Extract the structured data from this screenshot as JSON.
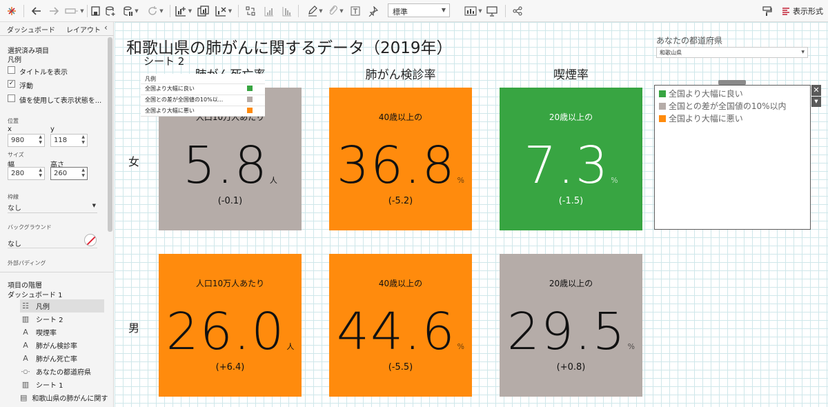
{
  "toolbar": {
    "fit_value": "標準",
    "format_label": "表示形式",
    "icons": [
      "tableau-logo-icon",
      "undo-icon",
      "redo-icon",
      "swap-icon",
      "save-icon",
      "add-datasource-icon",
      "pause-update-icon",
      "refresh-icon",
      "new-worksheet-icon",
      "duplicate-icon",
      "clear-icon",
      "swap-rows-icon",
      "sort-asc-icon",
      "sort-desc-icon",
      "highlight-icon",
      "group-icon",
      "label-icon",
      "pin-icon",
      "show-cards-icon",
      "presentation-icon",
      "share-icon",
      "format-painter-icon"
    ]
  },
  "panel": {
    "tabs": [
      "ダッシュボード",
      "レイアウト"
    ],
    "selected_label": "選択済み項目",
    "selected_item": "凡例",
    "cb_show_title": "タイトルを表示",
    "cb_float": "浮動",
    "cb_float_check": "✓",
    "cb_value_vis": "値を使用して表示状態を...",
    "pos_label": "位置",
    "x_label": "x",
    "y_label": "y",
    "x_value": "980",
    "y_value": "118",
    "size_label": "サイズ",
    "w_label": "幅",
    "h_label": "高さ",
    "w_value": "280",
    "h_value": "260",
    "border_label": "枠線",
    "border_value": "なし",
    "bg_label": "バックグラウンド",
    "bg_value": "なし",
    "padding_label": "外部パディング",
    "hierarchy_label": "項目の階層",
    "dashboard_name": "ダッシュボード 1",
    "tree": [
      {
        "label": "凡例",
        "icon": "legend-icon",
        "glyph": "☷"
      },
      {
        "label": "シート 2",
        "icon": "sheet-icon",
        "glyph": "▥"
      },
      {
        "label": "喫煙率",
        "icon": "text-icon",
        "glyph": "A"
      },
      {
        "label": "肺がん検診率",
        "icon": "text-icon",
        "glyph": "A"
      },
      {
        "label": "肺がん死亡率",
        "icon": "text-icon",
        "glyph": "A"
      },
      {
        "label": "あなたの都道府県",
        "icon": "parameter-icon",
        "glyph": "-○-"
      },
      {
        "label": "シート 1",
        "icon": "sheet-icon",
        "glyph": "▥"
      },
      {
        "label": "和歌山県の肺がんに関す",
        "icon": "title-icon",
        "glyph": "▤"
      }
    ]
  },
  "dashboard": {
    "title": "和歌山県の肺がんに関するデータ（2019年）",
    "sheet2_label": "シート 2",
    "col_headers": [
      "肺がん死亡率",
      "肺がん検診率",
      "喫煙率"
    ],
    "row_headers": [
      "女",
      "男"
    ],
    "tiles": [
      {
        "sub": "人口10万人あたり",
        "value": "5.8",
        "unit": "人",
        "diff": "(-0.1)",
        "color": "#b5aca8"
      },
      {
        "sub": "40歳以上の",
        "value": "36.8",
        "unit": "%",
        "diff": "(-5.2)",
        "color": "#ff8b0d"
      },
      {
        "sub": "20歳以上の",
        "value": "7.3",
        "unit": "%",
        "diff": "(-1.5)",
        "color": "#38a542"
      },
      {
        "sub": "人口10万人あたり",
        "value": "26.0",
        "unit": "人",
        "diff": "(+6.4)",
        "color": "#ff8b0d"
      },
      {
        "sub": "40歳以上の",
        "value": "44.6",
        "unit": "%",
        "diff": "(-5.5)",
        "color": "#ff8b0d"
      },
      {
        "sub": "20歳以上の",
        "value": "29.5",
        "unit": "%",
        "diff": "(+0.8)",
        "color": "#b5aca8"
      }
    ],
    "float_legend": {
      "header": "凡例",
      "items": [
        {
          "label": "全国より大幅に良い",
          "color": "#38a542"
        },
        {
          "label": "全国との差が全国値の10%以...",
          "color": "#b5aca8"
        },
        {
          "label": "全国より大幅に悪い",
          "color": "#ff8b0d"
        }
      ]
    },
    "pref_label": "あなたの都道府県",
    "pref_value": "和歌山県",
    "legend": {
      "items": [
        {
          "label": "全国より大幅に良い",
          "color": "#38a542"
        },
        {
          "label": "全国との差が全国値の10%以内",
          "color": "#b5aca8"
        },
        {
          "label": "全国より大幅に悪い",
          "color": "#ff8b0d"
        }
      ],
      "close": "✕",
      "menu": "▼"
    }
  }
}
